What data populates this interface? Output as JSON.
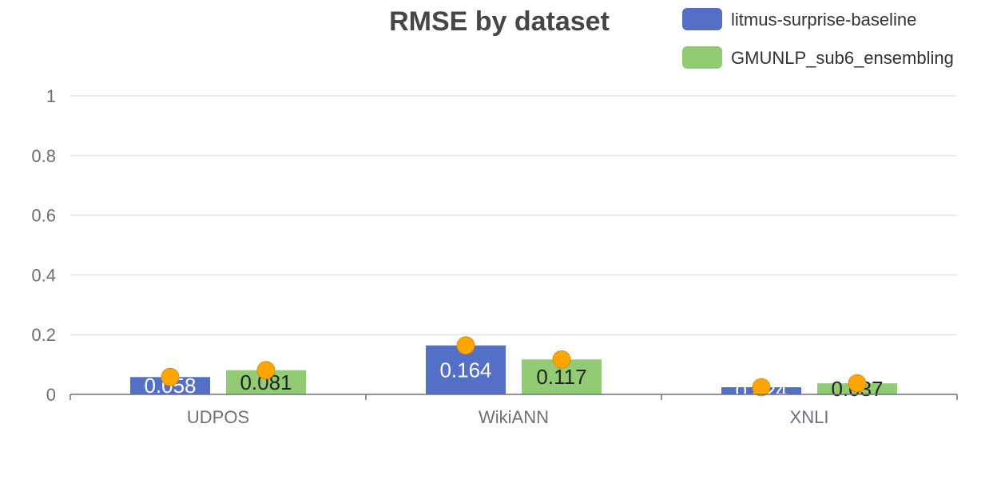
{
  "chart_data": {
    "type": "bar",
    "title": "RMSE by dataset",
    "xlabel": "",
    "ylabel": "",
    "categories": [
      "UDPOS",
      "WikiANN",
      "XNLI"
    ],
    "ylim": [
      0,
      1
    ],
    "yticks": [
      "0",
      "0.2",
      "0.4",
      "0.6",
      "0.8",
      "1"
    ],
    "grid": true,
    "legend_position": "top-right",
    "series": [
      {
        "name": "litmus-surprise-baseline",
        "color": "#5470c6",
        "label_color": "#ffffff",
        "values": [
          0.058,
          0.164,
          0.024
        ],
        "labels": [
          "0.058",
          "0.164",
          "0.024"
        ]
      },
      {
        "name": "GMUNLP_sub6_ensembling",
        "color": "#91cc75",
        "label_color": "#222222",
        "values": [
          0.081,
          0.117,
          0.037
        ],
        "labels": [
          "0.081",
          "0.117",
          "0.037"
        ]
      }
    ],
    "markers": {
      "color": "#ffa500",
      "shape": "circle"
    }
  }
}
